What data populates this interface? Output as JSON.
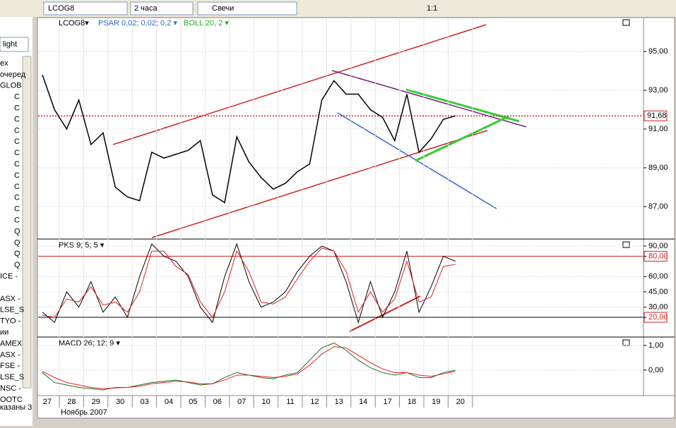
{
  "toolbar": {
    "symbol": "LCOG8",
    "interval": "2 часа",
    "chart_style": "Свечи",
    "zoom": "1:1"
  },
  "sidebar": {
    "filter": "light",
    "items": [
      "ex",
      "очеред",
      "GLOB",
      "C",
      "C",
      "C",
      "C",
      "C",
      "C",
      "C",
      "C",
      "C",
      "C",
      "C",
      "C",
      "Q",
      "Q",
      "Q",
      "Q",
      "ICE -",
      "",
      "ASX -",
      "LSE_S",
      "TYO -",
      "ии",
      "AMEX",
      "ASX -",
      "FSE -",
      "LSE_S",
      "NSC -",
      "OOTC"
    ],
    "footer": "казаны 3"
  },
  "x_axis": {
    "categories": [
      "27",
      "28",
      "29",
      "30",
      "03",
      "04",
      "05",
      "06",
      "07",
      "10",
      "11",
      "12",
      "13",
      "14",
      "17",
      "18",
      "19",
      "20"
    ],
    "month": "Ноябрь 2007"
  },
  "panels": [
    {
      "name": "price",
      "labels": [
        "LCOG8▾",
        "PSAR 0,02; 0,02; 0,2 ▾",
        "BOLL 20, 2 ▾"
      ],
      "ylim": [
        85.36,
        96.75
      ],
      "yticks": [
        {
          "value": 87,
          "label": "87,00"
        },
        {
          "value": 89,
          "label": "89,00"
        },
        {
          "value": 91,
          "label": "91,00"
        },
        {
          "value": 93,
          "label": "93,00"
        },
        {
          "value": 95,
          "label": "95,00"
        }
      ],
      "last_price": {
        "value": 91.68,
        "label": "91,68"
      },
      "series": [
        {
          "color": "#000000",
          "values": [
            93.8,
            92.0,
            91.0,
            92.5,
            90.2,
            90.8,
            88.0,
            87.5,
            87.3,
            89.8,
            89.5,
            89.7,
            89.9,
            90.4,
            87.6,
            87.2,
            90.6,
            89.3,
            88.5,
            87.9,
            88.2,
            88.8,
            89.2,
            92.5,
            93.5,
            92.8,
            92.8,
            92.0,
            91.6,
            90.4,
            92.8,
            89.8,
            90.5,
            91.5,
            91.68
          ]
        }
      ]
    },
    {
      "name": "pks",
      "labels": [
        "PKS 9; 5; 5 ▾"
      ],
      "ylim": [
        1.3,
        96.2
      ],
      "yticks": [
        {
          "value": 90,
          "label": "90,00"
        },
        {
          "value": 80,
          "label": "80,00"
        },
        {
          "value": 60,
          "label": "60,00"
        },
        {
          "value": 45,
          "label": "45,00"
        },
        {
          "value": 30,
          "label": "30,00"
        },
        {
          "value": 20,
          "label": "20,00"
        }
      ],
      "levels": [
        80,
        20
      ],
      "series": [
        {
          "color": "#000000",
          "values": [
            25,
            15,
            45,
            30,
            55,
            25,
            40,
            20,
            60,
            92,
            80,
            75,
            60,
            30,
            15,
            60,
            92,
            55,
            30,
            35,
            45,
            65,
            80,
            90,
            85,
            55,
            15,
            55,
            20,
            45,
            85,
            25,
            50,
            80,
            75
          ]
        },
        {
          "color": "#e02020",
          "values": [
            22,
            20,
            38,
            35,
            50,
            32,
            35,
            25,
            45,
            85,
            85,
            70,
            62,
            35,
            20,
            45,
            85,
            65,
            35,
            33,
            40,
            58,
            75,
            88,
            85,
            65,
            25,
            45,
            25,
            38,
            75,
            35,
            40,
            70,
            72
          ]
        }
      ]
    },
    {
      "name": "macd",
      "labels": [
        "MACD 26; 12; 9 ▾"
      ],
      "ylim": [
        -1.0,
        1.31
      ],
      "yticks": [
        {
          "value": 1,
          "label": "1,00"
        },
        {
          "value": 0,
          "label": "0,00"
        }
      ],
      "series": [
        {
          "color": "#207020",
          "values": [
            -0.1,
            -0.5,
            -0.6,
            -0.7,
            -0.75,
            -0.8,
            -0.7,
            -0.7,
            -0.6,
            -0.5,
            -0.45,
            -0.4,
            -0.5,
            -0.6,
            -0.55,
            -0.3,
            -0.1,
            -0.2,
            -0.3,
            -0.35,
            -0.2,
            -0.1,
            0.4,
            0.9,
            1.1,
            0.8,
            0.4,
            0.1,
            -0.1,
            -0.2,
            -0.1,
            -0.3,
            -0.3,
            -0.1,
            0.0
          ]
        },
        {
          "color": "#e02020",
          "values": [
            -0.05,
            -0.3,
            -0.5,
            -0.6,
            -0.7,
            -0.75,
            -0.72,
            -0.7,
            -0.65,
            -0.55,
            -0.5,
            -0.45,
            -0.48,
            -0.55,
            -0.55,
            -0.4,
            -0.2,
            -0.2,
            -0.25,
            -0.3,
            -0.25,
            -0.15,
            0.2,
            0.65,
            0.95,
            0.9,
            0.6,
            0.3,
            0.05,
            -0.1,
            -0.1,
            -0.2,
            -0.25,
            -0.15,
            -0.05
          ]
        }
      ]
    }
  ]
}
